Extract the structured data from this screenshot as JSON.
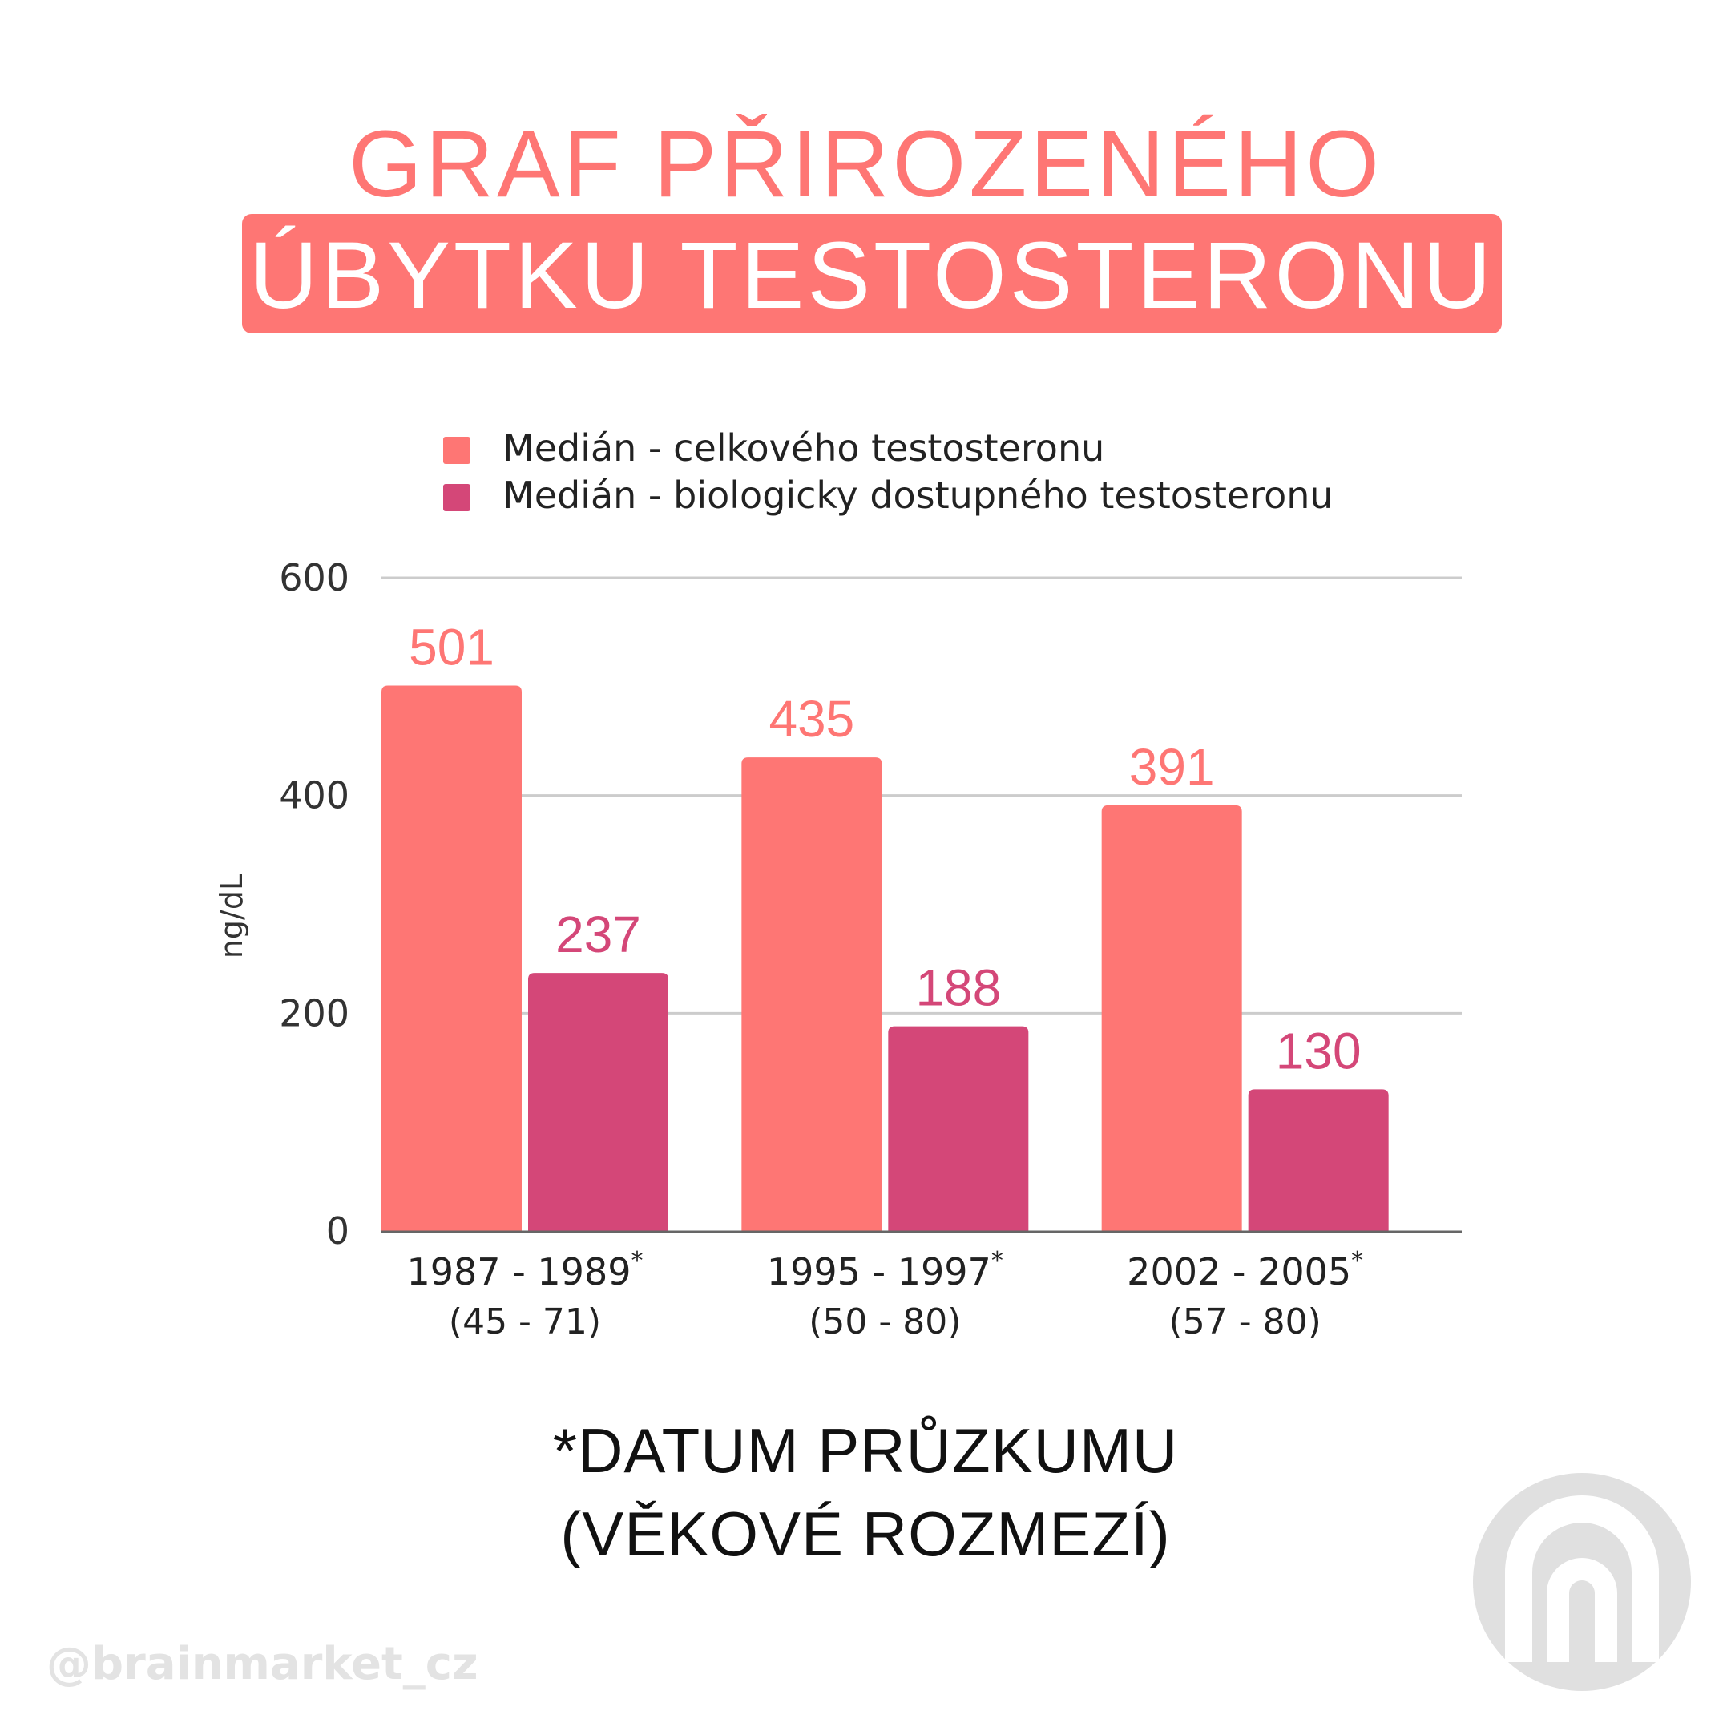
{
  "title": {
    "line1": "GRAF PŘIROZENÉHO",
    "line2": "ÚBYTKU TESTOSTERONU"
  },
  "colors": {
    "accent": "#fe7674",
    "series_total": "#fe7674",
    "series_bio": "#d44778",
    "grid": "#cccccc",
    "axis": "#666666"
  },
  "chart_data": {
    "type": "bar",
    "title": "",
    "xlabel": "",
    "ylabel": "ng/dL",
    "ylim": [
      0,
      600
    ],
    "yticks": [
      0,
      200,
      400,
      600
    ],
    "grid": true,
    "legend": "top",
    "categories": [
      "1987 - 1989",
      "1995 - 1997",
      "2002 - 2005"
    ],
    "category_marker": "*",
    "age_ranges": [
      "(45 - 71)",
      "(50 - 80)",
      "(57 - 80)"
    ],
    "series": [
      {
        "name": "Medián - celkového testosteronu",
        "values": [
          501,
          435,
          391
        ]
      },
      {
        "name": "Medián - biologicky dostupného testosteronu",
        "values": [
          237,
          188,
          130
        ]
      }
    ]
  },
  "footnote": {
    "line1": "*DATUM PRŮZKUMU",
    "line2": "(VĚKOVÉ ROZMEZÍ)"
  },
  "watermark": "@brainmarket_cz",
  "logo_icon": "brainmarket-logo-icon"
}
